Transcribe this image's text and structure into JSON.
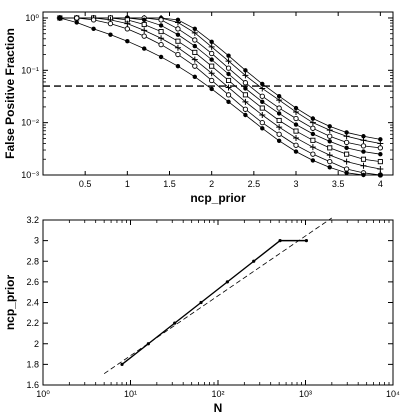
{
  "chart_data": [
    {
      "type": "line",
      "xlabel": "ncp_prior",
      "ylabel": "False Positive Fraction",
      "title": "",
      "xlim": [
        0.0,
        4.15
      ],
      "ylim": [
        0.001,
        1.3
      ],
      "yscale": "log",
      "xticks": [
        "0.5",
        "1",
        "1.5",
        "2",
        "2.5",
        "3",
        "3.5",
        "4"
      ],
      "yticks": [
        "10⁻³",
        "10⁻²",
        "10⁻¹",
        "10⁰"
      ],
      "reference_line": {
        "style": "dashed",
        "y": 0.05
      },
      "x": [
        0.2,
        0.4,
        0.6,
        0.8,
        1.0,
        1.2,
        1.4,
        1.6,
        1.8,
        2.0,
        2.2,
        2.4,
        2.6,
        2.8,
        3.0,
        3.2,
        3.4,
        3.6,
        3.8,
        4.0
      ],
      "series": [
        {
          "marker": "dot",
          "values": [
            1.0,
            1.0,
            1.0,
            1.0,
            1.0,
            1.0,
            1.0,
            0.92,
            0.62,
            0.35,
            0.19,
            0.1,
            0.055,
            0.032,
            0.019,
            0.012,
            0.0085,
            0.0065,
            0.0055,
            0.0048
          ]
        },
        {
          "marker": "plus",
          "values": [
            1.0,
            1.0,
            1.0,
            1.0,
            1.0,
            1.0,
            1.0,
            0.82,
            0.52,
            0.28,
            0.15,
            0.08,
            0.045,
            0.027,
            0.016,
            0.01,
            0.0072,
            0.0055,
            0.0046,
            0.004
          ]
        },
        {
          "marker": "circle",
          "values": [
            1.0,
            1.0,
            1.0,
            1.0,
            1.0,
            1.0,
            0.92,
            0.62,
            0.38,
            0.21,
            0.11,
            0.058,
            0.032,
            0.019,
            0.012,
            0.0078,
            0.0055,
            0.0042,
            0.0036,
            0.0033
          ]
        },
        {
          "marker": "dot",
          "values": [
            1.0,
            1.0,
            1.0,
            1.0,
            1.0,
            0.92,
            0.72,
            0.48,
            0.29,
            0.16,
            0.085,
            0.045,
            0.025,
            0.015,
            0.0092,
            0.0061,
            0.0044,
            0.0033,
            0.0028,
            0.0025
          ]
        },
        {
          "marker": "square",
          "values": [
            1.0,
            1.0,
            1.0,
            1.0,
            0.92,
            0.75,
            0.55,
            0.36,
            0.22,
            0.12,
            0.064,
            0.034,
            0.019,
            0.011,
            0.0069,
            0.0046,
            0.0033,
            0.0025,
            0.002,
            0.0018
          ]
        },
        {
          "marker": "plus",
          "values": [
            1.0,
            1.0,
            1.0,
            0.92,
            0.78,
            0.58,
            0.41,
            0.27,
            0.16,
            0.088,
            0.047,
            0.025,
            0.014,
            0.0082,
            0.0051,
            0.0034,
            0.0024,
            0.0018,
            0.0015,
            0.0013
          ]
        },
        {
          "marker": "circle",
          "values": [
            1.0,
            1.0,
            0.92,
            0.78,
            0.62,
            0.45,
            0.31,
            0.2,
            0.12,
            0.064,
            0.034,
            0.018,
            0.01,
            0.006,
            0.0037,
            0.0025,
            0.0018,
            0.0013,
            0.0011,
            0.00095
          ]
        },
        {
          "marker": "dot",
          "values": [
            1.0,
            0.82,
            0.62,
            0.48,
            0.36,
            0.26,
            0.18,
            0.12,
            0.075,
            0.044,
            0.025,
            0.014,
            0.0078,
            0.0045,
            0.0028,
            0.0019,
            0.0014,
            0.0011,
            0.00092,
            0.0008
          ]
        }
      ]
    },
    {
      "type": "line",
      "xlabel": "N",
      "ylabel": "ncp_prior",
      "title": "",
      "xscale": "log",
      "xlim": [
        1,
        10000
      ],
      "ylim": [
        1.6,
        3.2
      ],
      "xticks": [
        "10⁰",
        "10¹",
        "10²",
        "10³",
        "10⁴"
      ],
      "yticks": [
        "1.6",
        "1.8",
        "2",
        "2.2",
        "2.4",
        "2.6",
        "2.8",
        "3",
        "3.2"
      ],
      "series": [
        {
          "style": "solid",
          "marker": "dot",
          "x": [
            8,
            16,
            32,
            64,
            128,
            256,
            512,
            1024
          ],
          "y": [
            1.8,
            2.0,
            2.2,
            2.4,
            2.6,
            2.8,
            3.0,
            3.0
          ]
        },
        {
          "style": "dashed",
          "x": [
            5,
            2000
          ],
          "y": [
            1.71,
            3.22
          ]
        }
      ]
    }
  ]
}
